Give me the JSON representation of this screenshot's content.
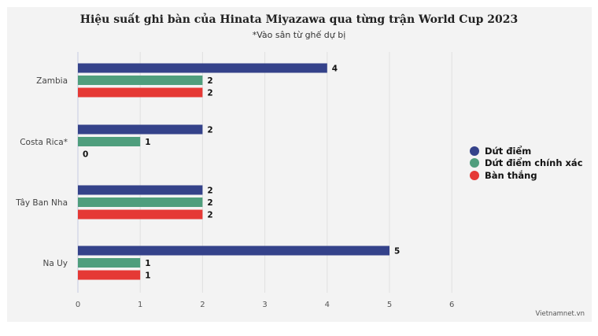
{
  "title": "Hiệu suất ghi bàn của Hinata Miyazawa qua từng trận World Cup 2023",
  "subtitle": "*Vào sân từ ghế dự bị",
  "source": "Vietnamnet.vn",
  "chart_data": {
    "type": "bar",
    "orientation": "horizontal",
    "categories": [
      "Zambia",
      "Costa Rica*",
      "Tây Ban Nha",
      "Na Uy"
    ],
    "series": [
      {
        "name": "Dứt điểm",
        "color": "#34428a",
        "values": [
          4,
          2,
          2,
          5
        ]
      },
      {
        "name": "Dứt điểm chính xác",
        "color": "#4f9e7d",
        "values": [
          2,
          1,
          2,
          1
        ]
      },
      {
        "name": "Bàn thắng",
        "color": "#e53935",
        "values": [
          2,
          0,
          2,
          1
        ]
      }
    ],
    "xlim": [
      0,
      6
    ],
    "xticks": [
      "0",
      "1",
      "2",
      "3",
      "4",
      "5",
      "6"
    ],
    "grid": true,
    "legend_position": "right",
    "data_labels": true
  }
}
